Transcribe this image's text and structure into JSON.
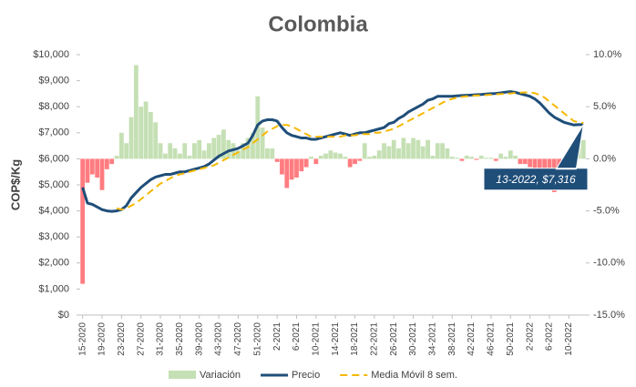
{
  "chart_data": {
    "type": "bar-line",
    "title": "Colombia",
    "y_label": "COP$/Kg",
    "categories": [
      "15-2020",
      null,
      null,
      null,
      "19-2020",
      null,
      null,
      null,
      "23-2020",
      null,
      null,
      null,
      "27-2020",
      null,
      null,
      null,
      "31-2020",
      null,
      null,
      null,
      "35-2020",
      null,
      null,
      null,
      "39-2020",
      null,
      null,
      null,
      "43-2020",
      null,
      null,
      null,
      "47-2020",
      null,
      null,
      null,
      "51-2020",
      null,
      null,
      null,
      "2-2021",
      null,
      null,
      null,
      "6-2021",
      null,
      null,
      null,
      "10-2021",
      null,
      null,
      null,
      "14-2021",
      null,
      null,
      null,
      "18-2021",
      null,
      null,
      null,
      "22-2021",
      null,
      null,
      null,
      "26-2021",
      null,
      null,
      null,
      "30-2021",
      null,
      null,
      null,
      "34-2021",
      null,
      null,
      null,
      "38-2021",
      null,
      null,
      null,
      "42-2021",
      null,
      null,
      null,
      "46-2021",
      null,
      null,
      null,
      "50-2021",
      null,
      null,
      null,
      "2-2022",
      null,
      null,
      null,
      "6-2022",
      null,
      null,
      null,
      "10-2022",
      null,
      null,
      null
    ],
    "series": [
      {
        "name": "Variación",
        "type": "bar",
        "axis": "y2",
        "color": "#c5e0b4",
        "negative_color": "#ff7c80",
        "values": [
          -12,
          -2.3,
          -1.5,
          -1.8,
          -3,
          -1,
          -0.5,
          0.3,
          2.5,
          1.5,
          4,
          9,
          5,
          5.5,
          4.5,
          3.5,
          1.5,
          0.5,
          1.5,
          1,
          0.5,
          1.5,
          0.3,
          1.5,
          1.8,
          0.8,
          1.5,
          2,
          2.3,
          2.8,
          1.8,
          1.5,
          0.8,
          1.5,
          2,
          2.5,
          6,
          3,
          1,
          1,
          -0.3,
          -1.5,
          -2.8,
          -2,
          -1.8,
          -1.2,
          -0.8,
          0.2,
          -0.5,
          0.3,
          0.5,
          0.8,
          0.6,
          0.5,
          0.2,
          -0.8,
          -0.5,
          -0.2,
          1.5,
          0.2,
          0.3,
          0.8,
          1.5,
          1.2,
          1.8,
          1,
          2,
          1.5,
          2,
          1.8,
          1.2,
          1.8,
          0.3,
          1.5,
          1.5,
          1,
          0.2,
          0.1,
          -0.2,
          0.3,
          0.2,
          -0.1,
          0.3,
          0.1,
          0.1,
          -0.2,
          0.5,
          0.2,
          0.8,
          0.3,
          -0.5,
          -0.5,
          -0.8,
          -1.2,
          -1.5,
          -2,
          -2.5,
          -3.2,
          -1,
          -1.5,
          -0.5,
          -0.3,
          1.5,
          1.8
        ]
      },
      {
        "name": "Precio",
        "type": "line",
        "color": "#1f4e79",
        "values": [
          4900,
          4300,
          4250,
          4150,
          4050,
          4000,
          3980,
          4000,
          4050,
          4200,
          4500,
          4700,
          4900,
          5050,
          5200,
          5300,
          5350,
          5400,
          5400,
          5450,
          5500,
          5500,
          5550,
          5600,
          5650,
          5700,
          5800,
          5950,
          6100,
          6200,
          6300,
          6350,
          6400,
          6500,
          6600,
          6900,
          7300,
          7450,
          7500,
          7500,
          7450,
          7200,
          7000,
          6900,
          6850,
          6800,
          6800,
          6750,
          6750,
          6800,
          6850,
          6900,
          6950,
          7000,
          6950,
          6900,
          6950,
          7000,
          7000,
          7050,
          7100,
          7150,
          7200,
          7350,
          7400,
          7550,
          7650,
          7800,
          7900,
          8000,
          8100,
          8250,
          8300,
          8400,
          8400,
          8400,
          8400,
          8420,
          8430,
          8440,
          8450,
          8460,
          8470,
          8490,
          8500,
          8510,
          8530,
          8560,
          8580,
          8550,
          8500,
          8450,
          8400,
          8300,
          8150,
          7950,
          7750,
          7600,
          7500,
          7400,
          7350,
          7300,
          7310,
          7316
        ]
      },
      {
        "name": "Media Móvil 8 sem.",
        "type": "line",
        "dashed": true,
        "color": "#f5b800",
        "values": [
          null,
          null,
          null,
          null,
          null,
          null,
          null,
          4100,
          4050,
          4100,
          4200,
          4300,
          4450,
          4600,
          4750,
          4900,
          5050,
          5150,
          5250,
          5350,
          5400,
          5450,
          5500,
          5550,
          5600,
          5650,
          5700,
          5750,
          5850,
          5950,
          6050,
          6150,
          6250,
          6350,
          6450,
          6600,
          6750,
          6900,
          7050,
          7150,
          7250,
          7300,
          7300,
          7250,
          7150,
          7050,
          6950,
          6850,
          6850,
          6850,
          6850,
          6850,
          6850,
          6850,
          6900,
          6900,
          6900,
          6950,
          6950,
          6950,
          7000,
          7000,
          7050,
          7100,
          7150,
          7250,
          7350,
          7450,
          7550,
          7650,
          7750,
          7850,
          7950,
          8050,
          8150,
          8250,
          8300,
          8350,
          8380,
          8400,
          8420,
          8430,
          8440,
          8450,
          8460,
          8480,
          8490,
          8500,
          8510,
          8530,
          8540,
          8550,
          8550,
          8520,
          8450,
          8350,
          8200,
          8050,
          7900,
          7750,
          7600,
          7450,
          7400,
          7380
        ]
      }
    ],
    "ylim": [
      0,
      10000
    ],
    "yticks": [
      {
        "value": 0,
        "label": "$0"
      },
      {
        "value": 1000,
        "label": "$1,000"
      },
      {
        "value": 2000,
        "label": "$2,000"
      },
      {
        "value": 3000,
        "label": "$3,000"
      },
      {
        "value": 4000,
        "label": "$4,000"
      },
      {
        "value": 5000,
        "label": "$5,000"
      },
      {
        "value": 6000,
        "label": "$6,000"
      },
      {
        "value": 7000,
        "label": "$7,000"
      },
      {
        "value": 8000,
        "label": "$8,000"
      },
      {
        "value": 9000,
        "label": "$9,000"
      },
      {
        "value": 10000,
        "label": "$10,000"
      }
    ],
    "y2lim": [
      -15,
      10
    ],
    "y2ticks": [
      {
        "value": -15,
        "label": "-15.0%"
      },
      {
        "value": -10,
        "label": "-10.0%"
      },
      {
        "value": -5,
        "label": "-5.0%"
      },
      {
        "value": 0,
        "label": "0.0%"
      },
      {
        "value": 5,
        "label": "5.0%"
      },
      {
        "value": 10,
        "label": "10.0%"
      }
    ],
    "annotation": {
      "text": "13-2022, $7,316",
      "series": 1,
      "index": 103
    },
    "legend": "bottom"
  }
}
